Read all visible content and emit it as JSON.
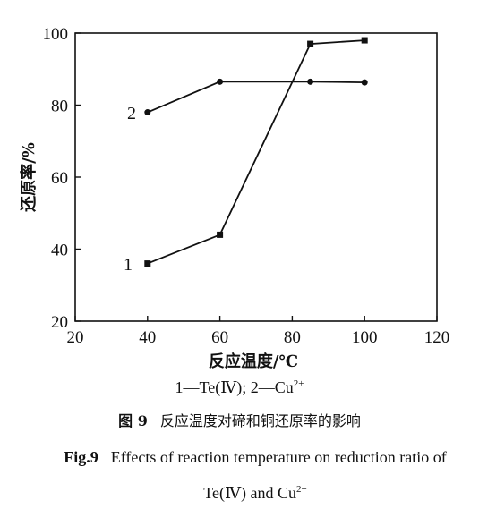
{
  "chart_data": {
    "type": "line",
    "xlabel": "反应温度/℃",
    "ylabel": "还原率/%",
    "xlim": [
      20,
      120
    ],
    "ylim": [
      20,
      100
    ],
    "x_ticks": [
      20,
      40,
      60,
      80,
      100,
      120
    ],
    "y_ticks": [
      20,
      40,
      60,
      80,
      100
    ],
    "grid": false,
    "series": [
      {
        "name": "1",
        "marker": "square",
        "x": [
          40,
          60,
          85,
          100
        ],
        "y": [
          36,
          44,
          97,
          98
        ]
      },
      {
        "name": "2",
        "marker": "circle",
        "x": [
          40,
          60,
          85,
          100
        ],
        "y": [
          78,
          86.5,
          86.5,
          86.3
        ]
      }
    ]
  },
  "legend": {
    "item1_num": "1",
    "item1_text": "Te(Ⅳ);",
    "item2_num": "2",
    "item2_text": "Cu",
    "item2_sup": "2+",
    "dash": "—"
  },
  "caption_cn": {
    "fig_no": "图 9",
    "text": "反应温度对碲和铜还原率的影响"
  },
  "caption_en": {
    "fig_no": "Fig.9",
    "line1": "Effects of reaction temperature on reduction ratio of",
    "line2": "Te(Ⅳ) and Cu",
    "line2_sup": "2+"
  }
}
